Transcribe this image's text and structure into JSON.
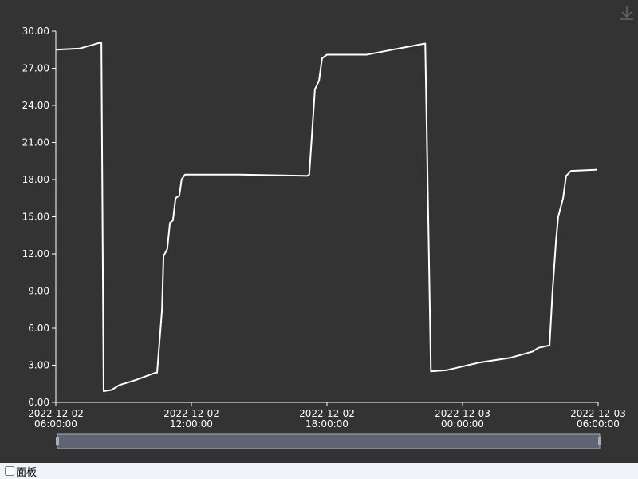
{
  "chart_data": {
    "type": "line",
    "x": [
      "2022-12-02 06:00:00",
      "2022-12-02 07:04:00",
      "2022-12-02 08:01:00",
      "2022-12-02 08:07:00",
      "2022-12-02 08:28:00",
      "2022-12-02 08:49:00",
      "2022-12-02 09:32:00",
      "2022-12-02 10:25:00",
      "2022-12-02 10:29:00",
      "2022-12-02 10:42:00",
      "2022-12-02 10:46:00",
      "2022-12-02 10:56:00",
      "2022-12-02 11:03:00",
      "2022-12-02 11:11:00",
      "2022-12-02 11:18:00",
      "2022-12-02 11:28:00",
      "2022-12-02 11:34:00",
      "2022-12-02 11:43:00",
      "2022-12-02 14:07:00",
      "2022-12-02 17:07:00",
      "2022-12-02 17:13:00",
      "2022-12-02 17:22:00",
      "2022-12-02 17:28:00",
      "2022-12-02 17:39:00",
      "2022-12-02 17:47:00",
      "2022-12-02 18:00:00",
      "2022-12-02 19:46:00",
      "2022-12-02 21:11:00",
      "2022-12-02 22:21:00",
      "2022-12-02 22:36:00",
      "2022-12-02 23:18:00",
      "2022-12-03 00:00:00",
      "2022-12-03 00:42:00",
      "2022-12-03 02:07:00",
      "2022-12-03 03:06:00",
      "2022-12-03 03:21:00",
      "2022-12-03 03:51:00",
      "2022-12-03 03:59:00",
      "2022-12-03 04:08:00",
      "2022-12-03 04:14:00",
      "2022-12-03 04:27:00",
      "2022-12-03 04:35:00",
      "2022-12-03 04:48:00",
      "2022-12-03 05:58:00"
    ],
    "series": [
      {
        "color": "#ffffff",
        "values": [
          28.5,
          28.6,
          29.1,
          0.9,
          1.0,
          1.4,
          1.8,
          2.4,
          2.4,
          7.5,
          11.8,
          12.4,
          14.5,
          14.7,
          16.5,
          16.7,
          18.0,
          18.4,
          18.4,
          18.3,
          18.4,
          22.5,
          25.3,
          26.0,
          27.8,
          28.1,
          28.1,
          28.6,
          29.0,
          2.5,
          2.6,
          2.9,
          3.2,
          3.6,
          4.1,
          4.4,
          4.6,
          9.0,
          13.0,
          15.0,
          16.5,
          18.3,
          18.7,
          18.8
        ]
      }
    ],
    "xlim": [
      "2022-12-02 06:00:00",
      "2022-12-03 06:00:00"
    ],
    "xticks": [
      "2022-12-02 06:00:00",
      "2022-12-02 12:00:00",
      "2022-12-02 18:00:00",
      "2022-12-03 00:00:00",
      "2022-12-03 06:00:00"
    ],
    "ylim": [
      0,
      30
    ],
    "yticks": [
      {
        "value": 0,
        "label": "0.00"
      },
      {
        "value": 3,
        "label": "3.00"
      },
      {
        "value": 6,
        "label": "6.00"
      },
      {
        "value": 9,
        "label": "9.00"
      },
      {
        "value": 12,
        "label": "12.00"
      },
      {
        "value": 15,
        "label": "15.00"
      },
      {
        "value": 18,
        "label": "18.00"
      },
      {
        "value": 21,
        "label": "21.00"
      },
      {
        "value": 24,
        "label": "24.00"
      },
      {
        "value": 27,
        "label": "27.00"
      },
      {
        "value": 30,
        "label": "30.00"
      }
    ],
    "grid": false
  },
  "panel_label": "面板"
}
